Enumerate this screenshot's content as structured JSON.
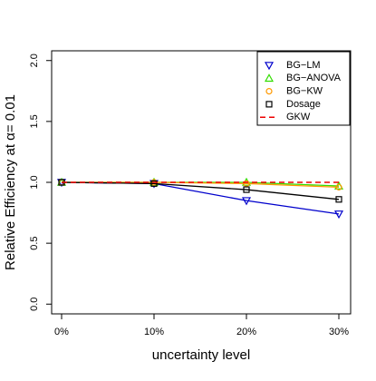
{
  "chart_data": {
    "type": "line",
    "ylabel": "Relative Efficiency at α= 0.01",
    "xlabel": "uncertainty level",
    "categories": [
      "0%",
      "10%",
      "20%",
      "30%"
    ],
    "ylim": [
      -0.08,
      2.08
    ],
    "yticks": [
      {
        "value": 0,
        "label": "0.0"
      },
      {
        "value": 0.5,
        "label": "0.5"
      },
      {
        "value": 1,
        "label": "1.0"
      },
      {
        "value": 1.5,
        "label": "1.5"
      },
      {
        "value": 2,
        "label": "2.0"
      }
    ],
    "legend": "top-right",
    "series": [
      {
        "name": "BG−LM",
        "color": "#0000cc",
        "marker": "triangle-down",
        "dash": false,
        "values": [
          1.0,
          0.99,
          0.85,
          0.74
        ]
      },
      {
        "name": "BG−ANOVA",
        "color": "#33dd00",
        "marker": "triangle-up",
        "dash": false,
        "values": [
          1.0,
          1.0,
          1.0,
          0.97
        ]
      },
      {
        "name": "BG−KW",
        "color": "#ff9900",
        "marker": "circle",
        "dash": false,
        "values": [
          1.0,
          1.0,
          0.99,
          0.96
        ]
      },
      {
        "name": "Dosage",
        "color": "#000000",
        "marker": "square",
        "dash": false,
        "values": [
          1.0,
          0.99,
          0.94,
          0.86
        ]
      },
      {
        "name": "GKW",
        "color": "#ee0000",
        "marker": "none",
        "dash": true,
        "values": [
          1.0,
          1.0,
          1.0,
          1.0
        ]
      }
    ]
  }
}
